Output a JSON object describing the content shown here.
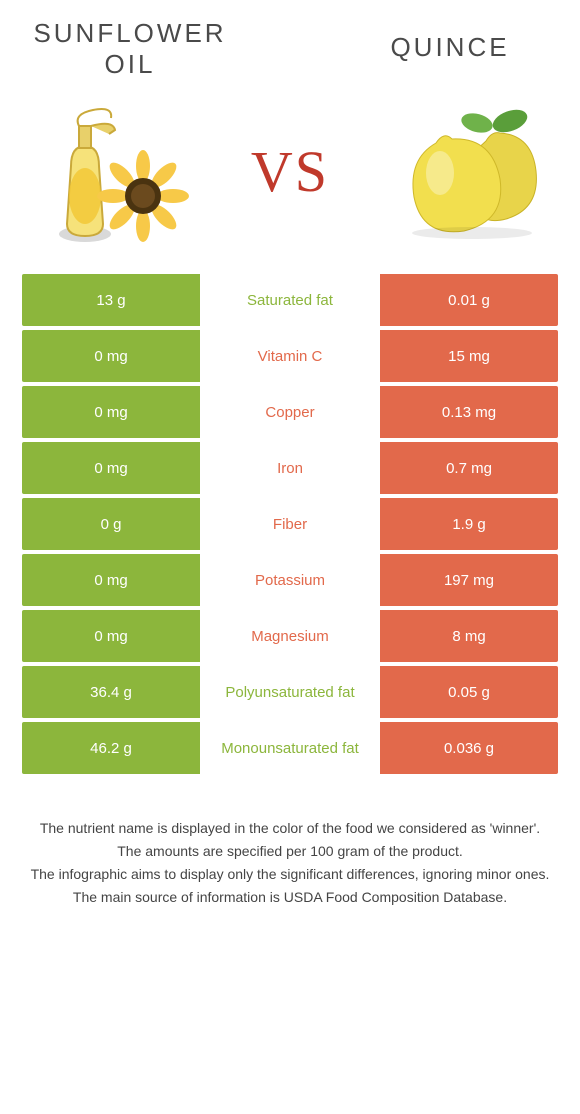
{
  "colors": {
    "left": "#8cb63c",
    "right": "#e2694b",
    "vs": "#c0392b",
    "title": "#4a4a4a",
    "text": "#333333"
  },
  "left": {
    "title": "SUNFLOWER OIL"
  },
  "right": {
    "title": "QUINCE"
  },
  "vs_label": "VS",
  "rows": [
    {
      "left": "13 g",
      "label": "Saturated fat",
      "right": "0.01 g",
      "winner": "left"
    },
    {
      "left": "0 mg",
      "label": "Vitamin C",
      "right": "15 mg",
      "winner": "right"
    },
    {
      "left": "0 mg",
      "label": "Copper",
      "right": "0.13 mg",
      "winner": "right"
    },
    {
      "left": "0 mg",
      "label": "Iron",
      "right": "0.7 mg",
      "winner": "right"
    },
    {
      "left": "0 g",
      "label": "Fiber",
      "right": "1.9 g",
      "winner": "right"
    },
    {
      "left": "0 mg",
      "label": "Potassium",
      "right": "197 mg",
      "winner": "right"
    },
    {
      "left": "0 mg",
      "label": "Magnesium",
      "right": "8 mg",
      "winner": "right"
    },
    {
      "left": "36.4 g",
      "label": "Polyunsaturated fat",
      "right": "0.05 g",
      "winner": "left"
    },
    {
      "left": "46.2 g",
      "label": "Monounsaturated fat",
      "right": "0.036 g",
      "winner": "left"
    }
  ],
  "footnotes": [
    "The nutrient name is displayed in the color of the food we considered as 'winner'.",
    "The amounts are specified per 100 gram of the product.",
    "The infographic aims to display only the significant differences, ignoring minor ones.",
    "The main source of information is USDA Food Composition Database."
  ]
}
